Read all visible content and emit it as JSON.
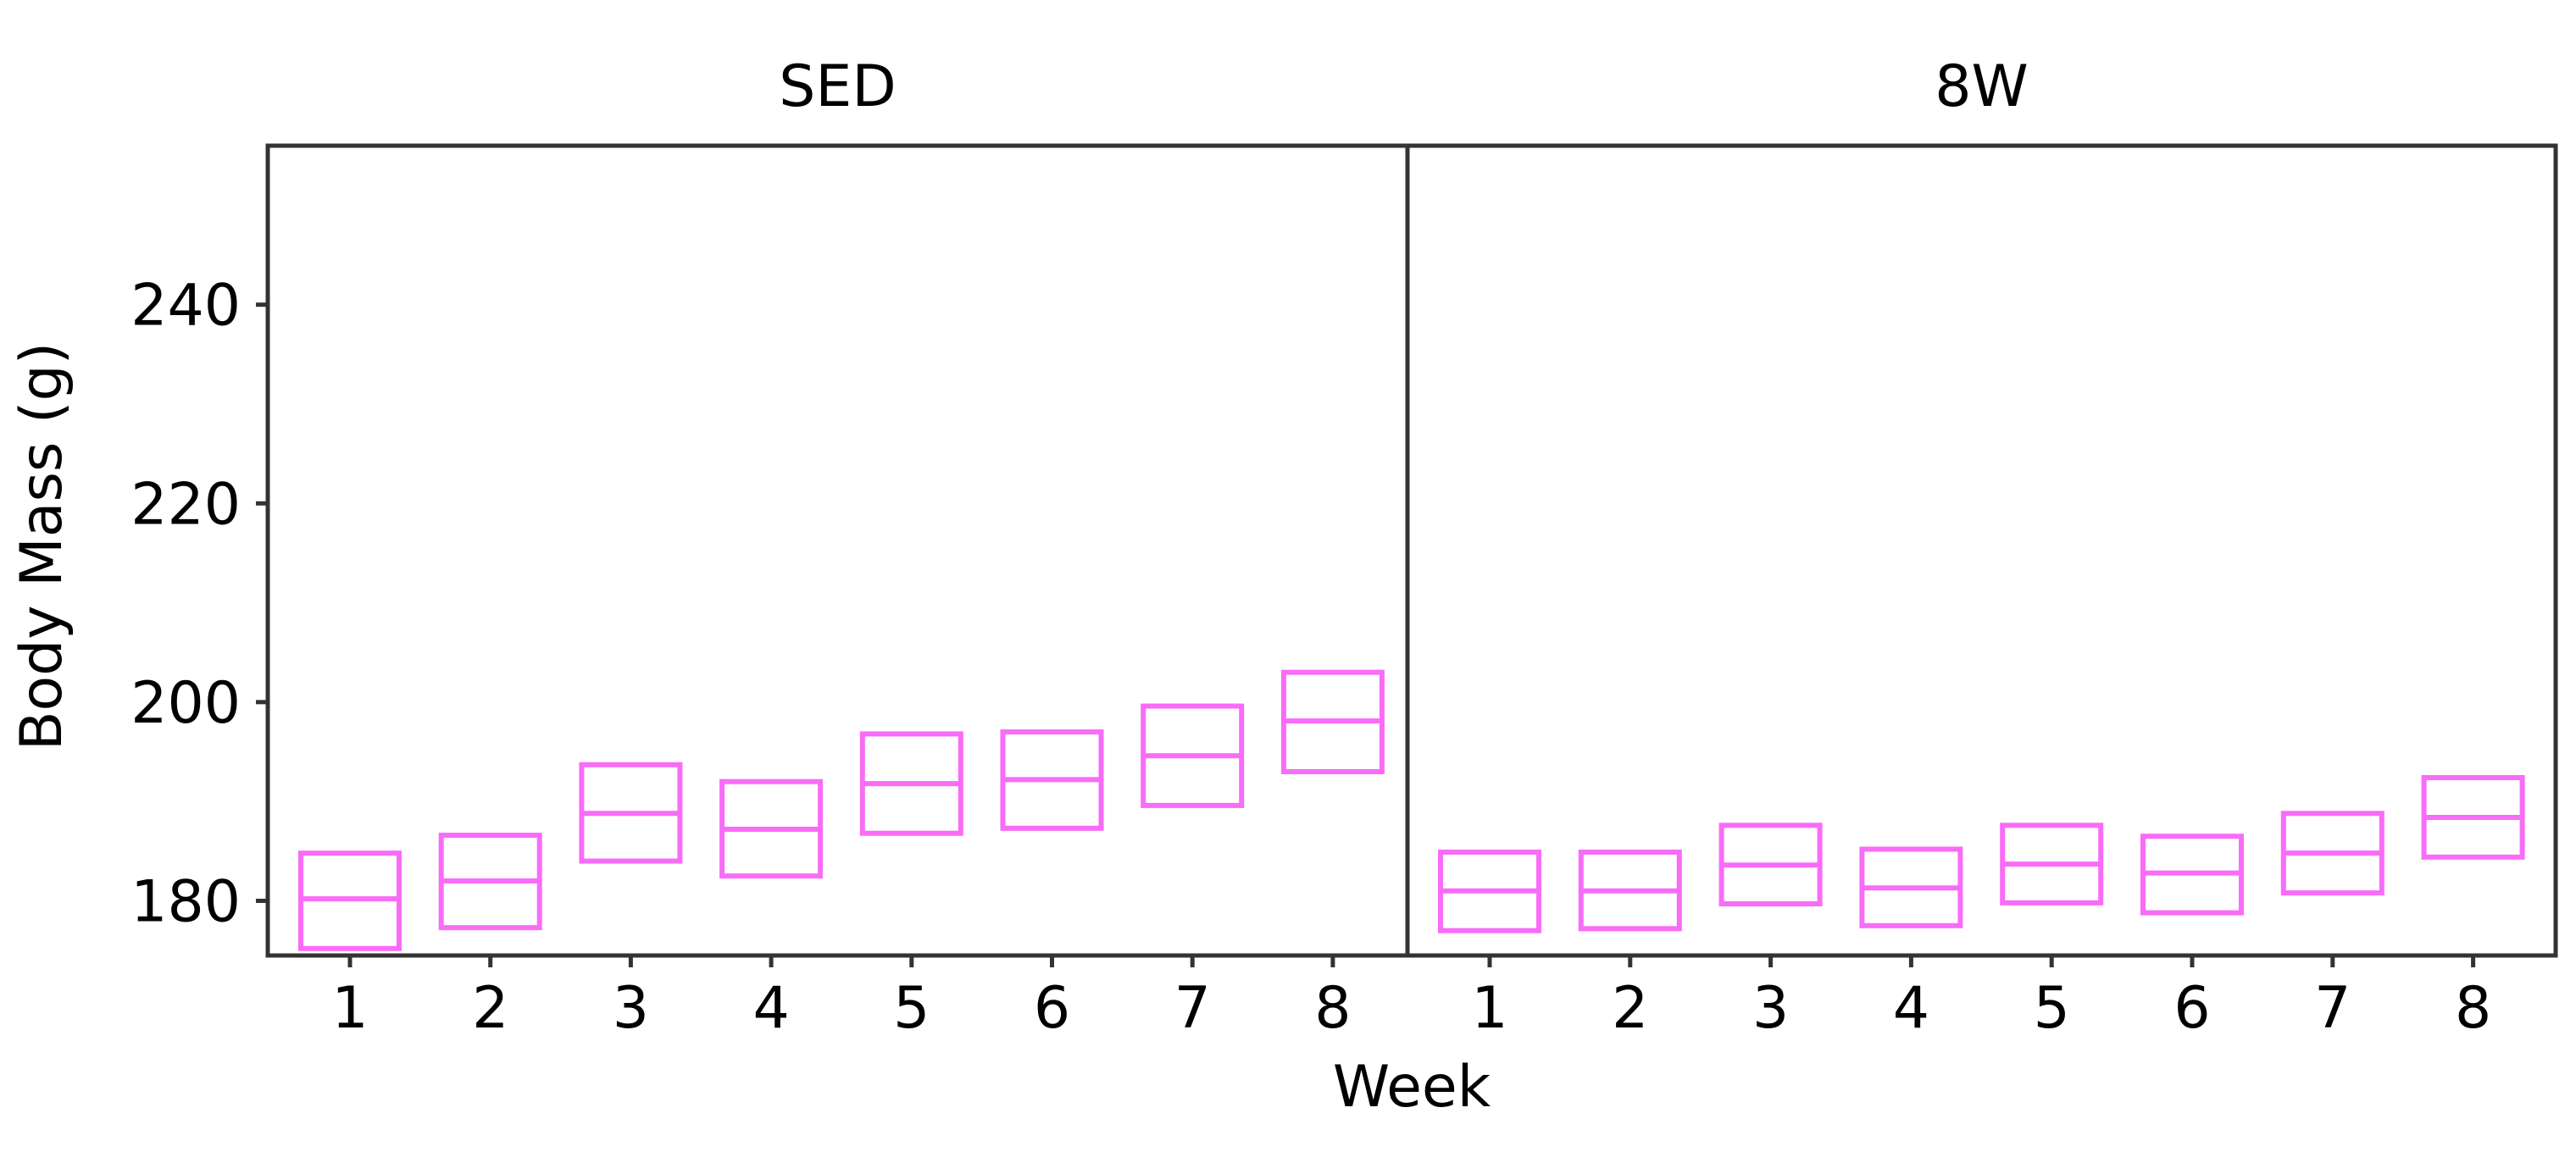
{
  "chart_data": {
    "type": "box",
    "xlabel": "Week",
    "ylabel": "Body Mass (g)",
    "ylim": [
      174.5,
      256
    ],
    "yticks": [
      180,
      200,
      220,
      240
    ],
    "categories": [
      "1",
      "2",
      "3",
      "4",
      "5",
      "6",
      "7",
      "8"
    ],
    "box_color": "#f86cf8",
    "grid": false,
    "panels": [
      {
        "name": "SED",
        "boxes": [
          {
            "week": "1",
            "low": 175.2,
            "mid": 180.2,
            "high": 184.8
          },
          {
            "week": "2",
            "low": 177.3,
            "mid": 182.0,
            "high": 186.6
          },
          {
            "week": "3",
            "low": 184.0,
            "mid": 188.8,
            "high": 193.7
          },
          {
            "week": "4",
            "low": 182.5,
            "mid": 187.2,
            "high": 192.0
          },
          {
            "week": "5",
            "low": 186.8,
            "mid": 191.8,
            "high": 196.8
          },
          {
            "week": "6",
            "low": 187.3,
            "mid": 192.2,
            "high": 197.0
          },
          {
            "week": "7",
            "low": 189.6,
            "mid": 194.6,
            "high": 199.6
          },
          {
            "week": "8",
            "low": 193.0,
            "mid": 198.1,
            "high": 203.0
          }
        ]
      },
      {
        "name": "8W",
        "boxes": [
          {
            "week": "1",
            "low": 177.0,
            "mid": 181.0,
            "high": 184.9
          },
          {
            "week": "2",
            "low": 177.2,
            "mid": 181.0,
            "high": 184.9
          },
          {
            "week": "3",
            "low": 179.7,
            "mid": 183.6,
            "high": 187.6
          },
          {
            "week": "4",
            "low": 177.5,
            "mid": 181.3,
            "high": 185.2
          },
          {
            "week": "5",
            "low": 179.8,
            "mid": 183.7,
            "high": 187.6
          },
          {
            "week": "6",
            "low": 178.8,
            "mid": 182.8,
            "high": 186.5
          },
          {
            "week": "7",
            "low": 180.8,
            "mid": 184.8,
            "high": 188.8
          },
          {
            "week": "8",
            "low": 184.4,
            "mid": 188.4,
            "high": 192.4
          }
        ]
      }
    ]
  }
}
